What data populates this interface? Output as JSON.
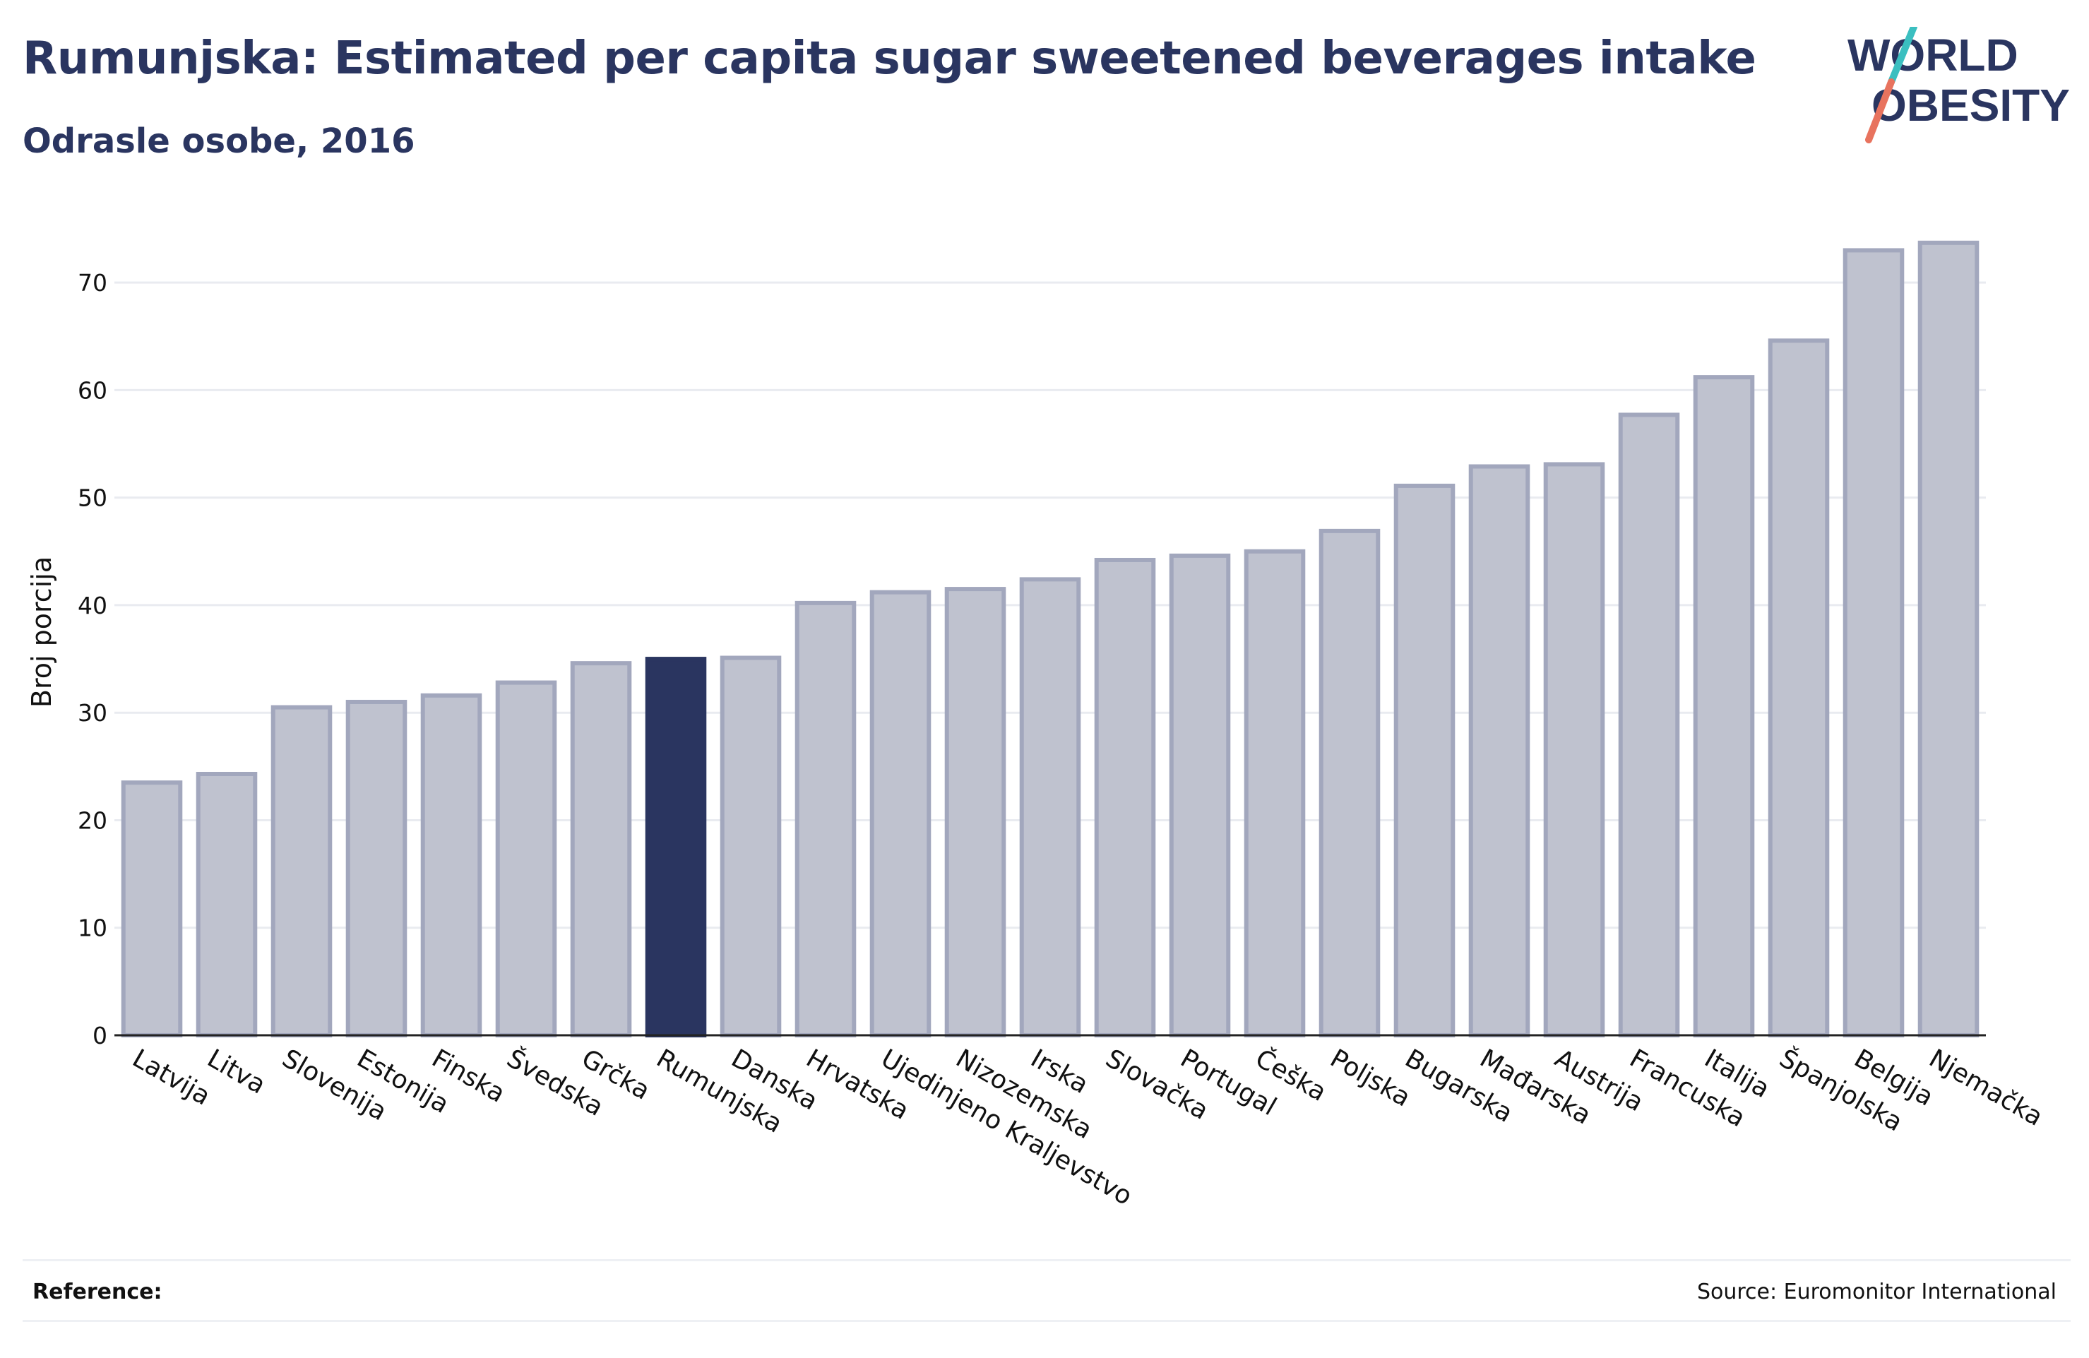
{
  "header": {
    "title": "Rumunjska: Estimated per capita sugar sweetened beverages intake",
    "subtitle": "Odrasle osobe, 2016"
  },
  "logo": {
    "line1": "WORLD",
    "line2": "OBESITY"
  },
  "footer": {
    "reference_label": "Reference:",
    "source": "Source: Euromonitor International"
  },
  "colors": {
    "highlight": "#2a3560",
    "bar_fill": "#bfc2cf",
    "bar_stroke": "#a2a7bd",
    "title": "#2a3560",
    "logo_teal": "#3bbfc0",
    "logo_coral": "#e8735e"
  },
  "chart_data": {
    "type": "bar",
    "ylabel": "Broj porcija",
    "xlabel": "",
    "ylim": [
      0,
      75
    ],
    "yticks": [
      0,
      10,
      20,
      30,
      40,
      50,
      60,
      70
    ],
    "grid": true,
    "highlight_category": "Rumunjska",
    "categories": [
      "Latvija",
      "Litva",
      "Slovenija",
      "Estonija",
      "Finska",
      "Švedska",
      "Grčka",
      "Rumunjska",
      "Danska",
      "Hrvatska",
      "Ujedinjeno Kraljevstvo",
      "Nizozemska",
      "Irska",
      "Slovačka",
      "Portugal",
      "Češka",
      "Poljska",
      "Bugarska",
      "Mađarska",
      "Austrija",
      "Francuska",
      "Italija",
      "Španjolska",
      "Belgija",
      "Njemačka"
    ],
    "values": [
      23.5,
      24.3,
      30.5,
      31.0,
      31.6,
      32.8,
      34.6,
      35.0,
      35.1,
      40.2,
      41.2,
      41.5,
      42.4,
      44.2,
      44.6,
      45.0,
      46.9,
      51.1,
      52.9,
      53.1,
      57.7,
      61.2,
      64.6,
      73.0,
      73.7
    ]
  }
}
